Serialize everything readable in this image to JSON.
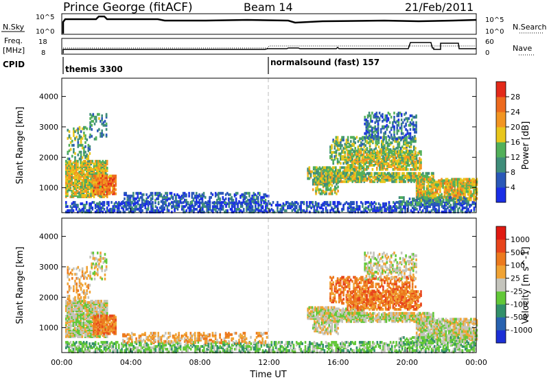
{
  "header": {
    "station": "Prince George (fitACF)",
    "beam": "Beam 14",
    "date": "21/Feb/2011"
  },
  "status_panels": {
    "nsky_label": "N.Sky",
    "nsky_ticks": [
      "10^5",
      "10^0"
    ],
    "nsearch_label": "N.Search",
    "nsearch_ticks": [
      "10^5",
      "10^0"
    ],
    "freq_label": "Freq.",
    "freq_unit": "[MHz]",
    "freq_ticks": [
      "18",
      "8"
    ],
    "nave_label": "Nave",
    "nave_ticks": [
      "60",
      "0"
    ],
    "cpid_label": "CPID",
    "cpid_segments": [
      {
        "label": "themis 3300",
        "start_hour": 0
      },
      {
        "label": "normalsound (fast) 157",
        "start_hour": 12
      }
    ]
  },
  "chart_data": [
    {
      "type": "heatmap",
      "name": "Power",
      "ylabel": "Slant Range [km]",
      "ylim": [
        180,
        4600
      ],
      "yticks": [
        1000,
        2000,
        3000,
        4000
      ],
      "xlim_hours": [
        0,
        24
      ],
      "colorbar_label": "Power [dB]",
      "colorbar_ticks": [
        "4",
        "8",
        "12",
        "16",
        "20",
        "24",
        "28"
      ],
      "colorbar_colors": [
        "#1a2ee6",
        "#2a58b8",
        "#3f8d7a",
        "#52b05a",
        "#e8c61c",
        "#f29522",
        "#ed6a1e",
        "#e32a1a"
      ]
    },
    {
      "type": "heatmap",
      "name": "Velocity",
      "ylabel": "Slant Range [km]",
      "ylim": [
        180,
        4600
      ],
      "yticks": [
        1000,
        2000,
        3000,
        4000
      ],
      "xlim_hours": [
        0,
        24
      ],
      "xlabel": "Time UT",
      "xticks": [
        "00:00",
        "04:00",
        "08:00",
        "12:00",
        "16:00",
        "20:00",
        "00:00"
      ],
      "colorbar_label": "Velocity [m s^-1]",
      "colorbar_ticks": [
        "1000",
        "500",
        "100",
        "25",
        "-25",
        "-100",
        "-500",
        "-1000"
      ],
      "colorbar_colors": [
        "#1c2fd6",
        "#2862b0",
        "#32906a",
        "#62c838",
        "#c4c4bc",
        "#f0a334",
        "#ec7a1e",
        "#e8451c",
        "#e01a12"
      ]
    }
  ]
}
